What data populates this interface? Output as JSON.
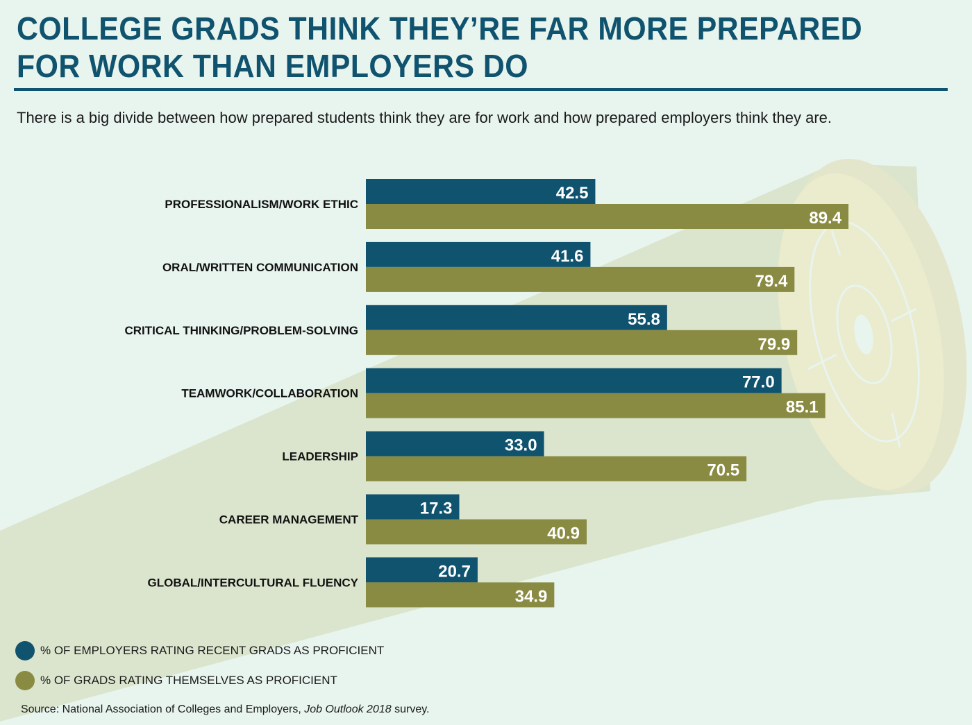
{
  "header": {
    "title_line1": "COLLEGE GRADS THINK THEY’RE FAR MORE PREPARED",
    "title_line2": "FOR WORK THAN EMPLOYERS DO",
    "subtitle": "There is a big divide between how prepared students think they are for work and how prepared employers think they are."
  },
  "colors": {
    "employers": "#10536f",
    "grads": "#8a8b43",
    "background": "#e8f4ee",
    "beam": "#dbe5cd",
    "target": "#ebebcd"
  },
  "chart_data": {
    "type": "bar",
    "orientation": "horizontal",
    "title": "COLLEGE GRADS THINK THEY’RE FAR MORE PREPARED FOR WORK THAN EMPLOYERS DO",
    "xlabel": "",
    "ylabel": "",
    "xlim": [
      0,
      100
    ],
    "grid": false,
    "legend_position": "bottom-left",
    "categories": [
      "PROFESSIONALISM/WORK ETHIC",
      "ORAL/WRITTEN COMMUNICATION",
      "CRITICAL THINKING/PROBLEM-SOLVING",
      "TEAMWORK/COLLABORATION",
      "LEADERSHIP",
      "CAREER MANAGEMENT",
      "GLOBAL/INTERCULTURAL FLUENCY"
    ],
    "series": [
      {
        "name": "% OF EMPLOYERS RATING RECENT GRADS AS PROFICIENT",
        "color": "#10536f",
        "values": [
          42.5,
          41.6,
          55.8,
          77.0,
          33.0,
          17.3,
          20.7
        ],
        "labels": [
          "42.5",
          "41.6",
          "55.8",
          "77.0",
          "33.0",
          "17.3",
          "20.7"
        ]
      },
      {
        "name": "% OF GRADS RATING THEMSELVES AS PROFICIENT",
        "color": "#8a8b43",
        "values": [
          89.4,
          79.4,
          79.9,
          85.1,
          70.5,
          40.9,
          34.9
        ],
        "labels": [
          "89.4",
          "79.4",
          "79.9",
          "85.1",
          "70.5",
          "40.9",
          "34.9"
        ]
      }
    ]
  },
  "source": {
    "prefix": "Source: National Association of Colleges and Employers, ",
    "italic": "Job Outlook 2018",
    "suffix": " survey."
  }
}
